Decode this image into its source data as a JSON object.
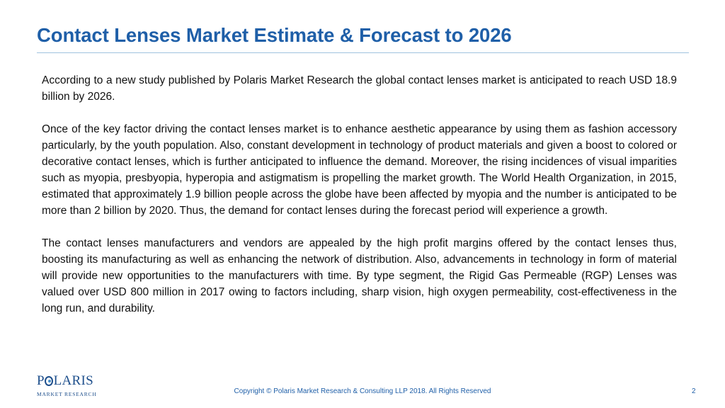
{
  "slide": {
    "title": "Contact Lenses Market Estimate & Forecast to 2026",
    "paragraphs": [
      "According to a new study published by Polaris Market Research the global contact lenses market is anticipated to reach USD 18.9 billion by 2026.",
      "Once of the key factor driving the contact lenses market is to enhance aesthetic appearance by using them as fashion accessory particularly, by the youth population. Also, constant development in technology of product materials and given a boost to colored or decorative contact lenses, which is further anticipated to influence the demand. Moreover, the rising incidences of visual imparities such as myopia, presbyopia, hyperopia and astigmatism is propelling the market growth. The World Health Organization, in 2015, estimated that approximately 1.9 billion people across the globe have been affected by myopia and the number is anticipated to be more than 2 billion by 2020. Thus, the demand for contact lenses during the forecast period will experience a growth.",
      "The contact lenses manufacturers and vendors are appealed by the high profit margins offered by the contact lenses thus, boosting its manufacturing as well as enhancing the network of distribution. Also, advancements in technology in form of material will provide new opportunities to the manufacturers with time. By type segment, the Rigid Gas Permeable (RGP) Lenses was valued over USD 800 million in 2017 owing to factors including, sharp vision, high oxygen permeability, cost-effectiveness in the long run, and durability."
    ]
  },
  "logo": {
    "letter_p": "P",
    "letters_rest": "LARIS",
    "subtitle": "MARKET RESEARCH"
  },
  "footer": {
    "copyright": "Copyright © Polaris Market Research & Consulting LLP 2018. All Rights Reserved",
    "page_number": "2"
  },
  "colors": {
    "title": "#1f5fa8",
    "rule": "#9fc3df",
    "logo": "#1e4f8c",
    "body_text": "#111111"
  }
}
